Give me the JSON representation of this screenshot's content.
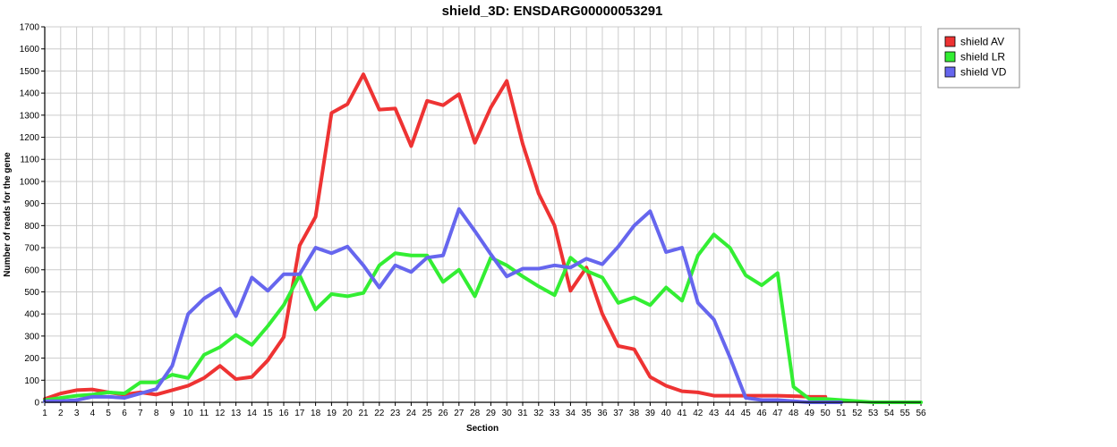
{
  "chart_data": {
    "type": "line",
    "title": "shield_3D: ENSDARG00000053291",
    "xlabel": "Section",
    "ylabel": "Number of reads for the gene",
    "x": [
      1,
      2,
      3,
      4,
      5,
      6,
      7,
      8,
      9,
      10,
      11,
      12,
      13,
      14,
      15,
      16,
      17,
      18,
      19,
      20,
      21,
      22,
      23,
      24,
      25,
      26,
      27,
      28,
      29,
      30,
      31,
      32,
      33,
      34,
      35,
      36,
      37,
      38,
      39,
      40,
      41,
      42,
      43,
      44,
      45,
      46,
      47,
      48,
      49,
      50,
      51,
      52,
      53,
      54,
      55,
      56
    ],
    "xlim": [
      1,
      56
    ],
    "ylim": [
      0,
      1700
    ],
    "y_ticks": [
      0,
      100,
      200,
      300,
      400,
      500,
      600,
      700,
      800,
      900,
      1000,
      1100,
      1200,
      1300,
      1400,
      1500,
      1600,
      1700
    ],
    "grid": true,
    "legend_position": "right",
    "series": [
      {
        "name": "shield AV",
        "color": "#ee3333",
        "values": [
          15,
          40,
          55,
          58,
          45,
          35,
          45,
          35,
          55,
          75,
          110,
          165,
          105,
          115,
          190,
          295,
          710,
          840,
          1310,
          1350,
          1485,
          1325,
          1330,
          1160,
          1365,
          1345,
          1395,
          1175,
          1335,
          1455,
          1170,
          945,
          800,
          505,
          610,
          400,
          255,
          240,
          115,
          75,
          50,
          45,
          30,
          30,
          30,
          30,
          30,
          28,
          25,
          25,
          null,
          null,
          null,
          null,
          null,
          null
        ]
      },
      {
        "name": "shield LR",
        "color": "#33ee33",
        "values": [
          10,
          20,
          30,
          35,
          45,
          40,
          90,
          90,
          125,
          110,
          215,
          250,
          305,
          260,
          345,
          440,
          575,
          420,
          490,
          480,
          495,
          620,
          675,
          665,
          665,
          545,
          600,
          480,
          655,
          620,
          570,
          525,
          485,
          655,
          595,
          565,
          450,
          475,
          440,
          520,
          460,
          665,
          760,
          700,
          575,
          530,
          585,
          70,
          15,
          15,
          10,
          5,
          0,
          0,
          0,
          0
        ]
      },
      {
        "name": "shield VD",
        "color": "#6666ee",
        "values": [
          5,
          5,
          10,
          25,
          25,
          20,
          40,
          60,
          165,
          400,
          470,
          515,
          390,
          565,
          505,
          580,
          580,
          700,
          675,
          705,
          620,
          520,
          620,
          590,
          655,
          665,
          875,
          775,
          670,
          570,
          605,
          605,
          620,
          610,
          650,
          625,
          705,
          800,
          865,
          680,
          700,
          450,
          375,
          205,
          20,
          10,
          10,
          5,
          0,
          0,
          0,
          null,
          null,
          null,
          null,
          null
        ]
      }
    ]
  }
}
